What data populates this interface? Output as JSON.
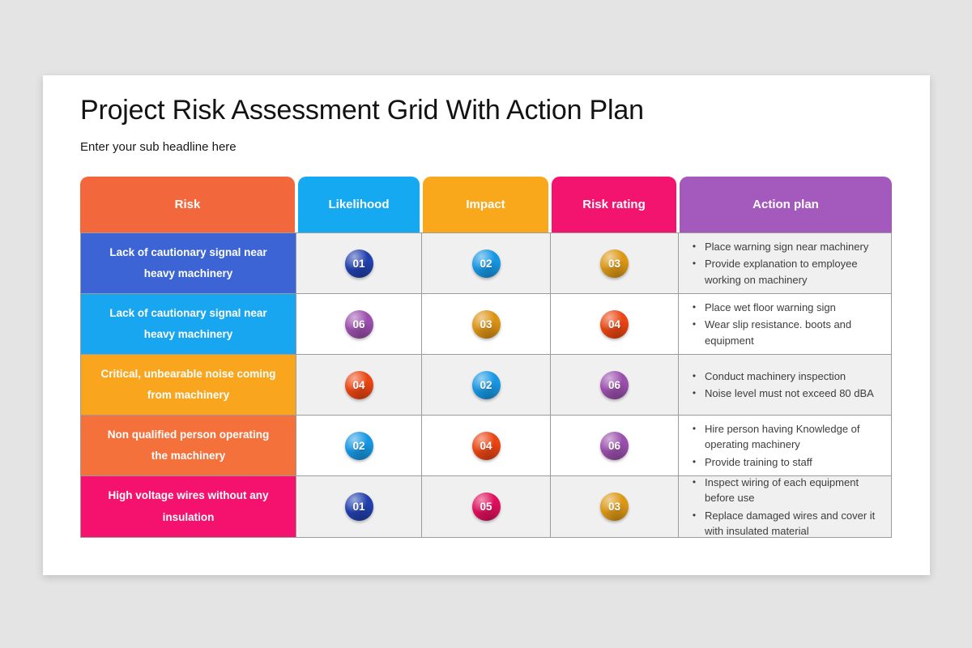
{
  "page": {
    "title": "Project Risk Assessment Grid With Action Plan",
    "subtitle": "Enter your sub headline here"
  },
  "colors": {
    "canvas_background": "#e5e4e5",
    "card_background": "#ffffff",
    "row_alternate": "#f1f0f0",
    "grid_border": "#9b9b9b"
  },
  "table": {
    "headers": [
      {
        "label": "Risk",
        "color": "#f2683c"
      },
      {
        "label": "Likelihood",
        "color": "#15a9f1"
      },
      {
        "label": "Impact",
        "color": "#f9a71b"
      },
      {
        "label": "Risk rating",
        "color": "#f2146f"
      },
      {
        "label": "Action plan",
        "color": "#a35abc"
      }
    ],
    "rows": [
      {
        "risk": {
          "label": "Lack of cautionary signal near heavy machinery",
          "color": "#3c64d4"
        },
        "likelihood": {
          "value": "01",
          "color": "#2240ad"
        },
        "impact": {
          "value": "02",
          "color": "#1797e3"
        },
        "rating": {
          "value": "03",
          "color": "#dc9815"
        },
        "actions": [
          "Place warning sign near machinery",
          "Provide explanation to employee working on machinery"
        ]
      },
      {
        "risk": {
          "label": "Lack of cautionary signal near heavy machinery",
          "color": "#19a6f1"
        },
        "likelihood": {
          "value": "06",
          "color": "#9b4fad"
        },
        "impact": {
          "value": "03",
          "color": "#dc9314"
        },
        "rating": {
          "value": "04",
          "color": "#ea4512"
        },
        "actions": [
          "Place wet floor warning sign",
          "Wear slip resistance. boots and equipment"
        ]
      },
      {
        "risk": {
          "label": "Critical, unbearable noise coming from machinery",
          "color": "#f9a51e"
        },
        "likelihood": {
          "value": "04",
          "color": "#ea4512"
        },
        "impact": {
          "value": "02",
          "color": "#1797e3"
        },
        "rating": {
          "value": "06",
          "color": "#9b4fad"
        },
        "actions": [
          "Conduct machinery inspection",
          "Noise level must not exceed 80 dBA"
        ]
      },
      {
        "risk": {
          "label": "Non qualified person operating the machinery",
          "color": "#f4713b"
        },
        "likelihood": {
          "value": "02",
          "color": "#1797e3"
        },
        "impact": {
          "value": "04",
          "color": "#ea4512"
        },
        "rating": {
          "value": "06",
          "color": "#9b4fad"
        },
        "actions": [
          "Hire person having Knowledge of operating machinery",
          "Provide training to staff"
        ]
      },
      {
        "risk": {
          "label": "High voltage wires without any insulation",
          "color": "#f4126e"
        },
        "likelihood": {
          "value": "01",
          "color": "#2240ad"
        },
        "impact": {
          "value": "05",
          "color": "#df0f5d"
        },
        "rating": {
          "value": "03",
          "color": "#dc9815"
        },
        "actions": [
          "Inspect wiring of each equipment before use",
          "Replace damaged wires and cover it with insulated material"
        ]
      }
    ]
  }
}
